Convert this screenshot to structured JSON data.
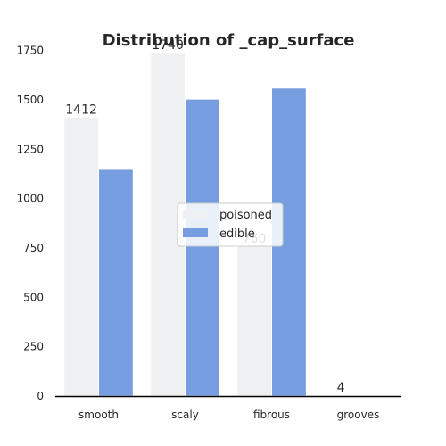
{
  "chart_data": {
    "type": "bar",
    "title": "Distribution of _cap_surface",
    "xlabel": "",
    "ylabel": "",
    "categories": [
      "smooth",
      "scaly",
      "fibrous",
      "grooves"
    ],
    "series": [
      {
        "name": "poisoned",
        "values": [
          1412,
          1740,
          760,
          4
        ],
        "color": "#eff0f2"
      },
      {
        "name": "edible",
        "values": [
          1148,
          1504,
          1560,
          0
        ],
        "color": "#759ddf"
      }
    ],
    "ylim": [
      0,
      1830
    ],
    "yticks": [
      0,
      250,
      500,
      750,
      1000,
      1250,
      1500,
      1750
    ],
    "data_labels": [
      {
        "category": "smooth",
        "series": "poisoned",
        "text": "1412"
      },
      {
        "category": "scaly",
        "series": "poisoned",
        "text": "1740"
      },
      {
        "category": "fibrous",
        "series": "poisoned",
        "text": "760"
      },
      {
        "category": "grooves",
        "series": "poisoned",
        "text": "4"
      }
    ],
    "legend_placement": "center",
    "grid": false
  }
}
